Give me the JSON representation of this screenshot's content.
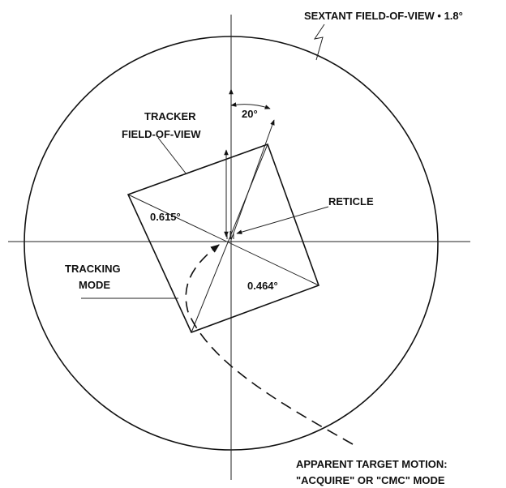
{
  "labels": {
    "sextant": "SEXTANT FIELD-OF-VIEW • 1.8°",
    "tracker_line1": "TRACKER",
    "tracker_line2": "FIELD-OF-VIEW",
    "angle": "20°",
    "reticle": "RETICLE",
    "width_angle": "0.615°",
    "tracking_line1": "TRACKING",
    "tracking_line2": "MODE",
    "height_angle": "0.464°",
    "motion_line1": "APPARENT TARGET MOTION:",
    "motion_line2": "\"ACQUIRE\" OR \"CMC\" MODE"
  }
}
